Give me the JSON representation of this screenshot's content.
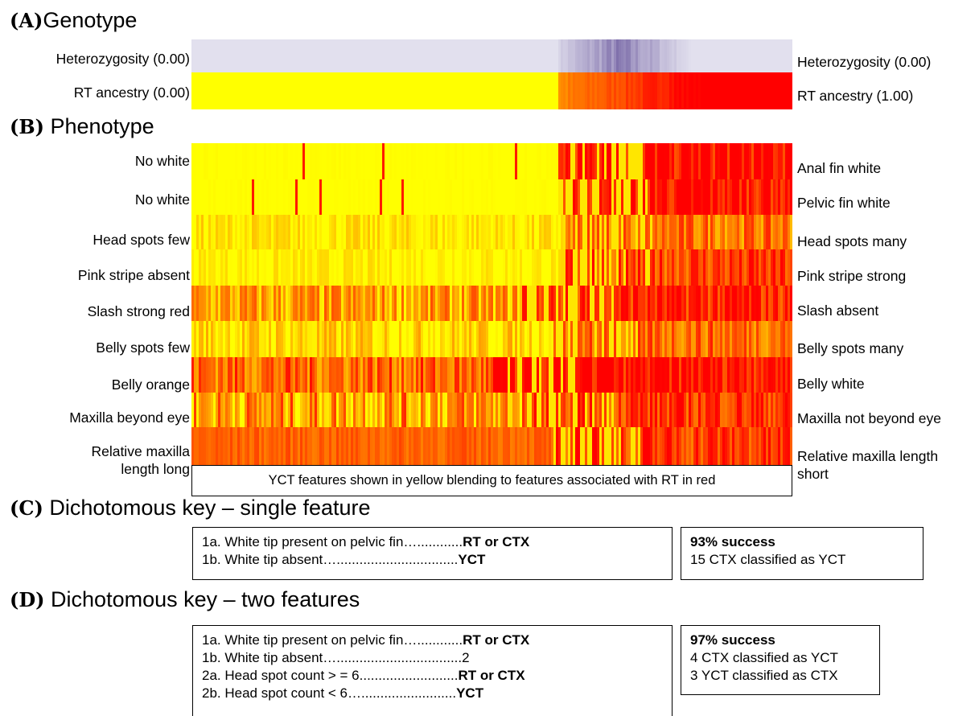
{
  "section_a": {
    "letter": "(A)",
    "title": "Genotype"
  },
  "section_b": {
    "letter": "(B)",
    "title": "Phenotype"
  },
  "section_c": {
    "letter": "(C)",
    "title": "Dichotomous key – single feature"
  },
  "section_d": {
    "letter": "(D)",
    "title": "Dichotomous key – two features"
  },
  "genotype_rows": [
    {
      "left": "Heterozygosity (0.00)",
      "right": "Heterozygosity (0.00)",
      "palette": "purple"
    },
    {
      "left": "RT ancestry (0.00)",
      "right": "RT ancestry (1.00)",
      "palette": "ancestry"
    }
  ],
  "phenotype_rows": [
    {
      "left": "No white",
      "right": "Anal fin white"
    },
    {
      "left": "No white",
      "right": "Pelvic fin white"
    },
    {
      "left": "Head spots few",
      "right": "Head spots many"
    },
    {
      "left": "Pink stripe absent",
      "right": "Pink stripe strong"
    },
    {
      "left": "Slash strong red",
      "right": "Slash absent"
    },
    {
      "left": "Belly spots few",
      "right": "Belly spots many"
    },
    {
      "left": "Belly orange",
      "right": "Belly white"
    },
    {
      "left": "Maxilla beyond eye",
      "right": "Maxilla not beyond eye"
    },
    {
      "left": "Relative maxilla length long",
      "right": "Relative maxilla length short"
    }
  ],
  "legend_note": "YCT features shown in yellow blending to features associated with RT in red",
  "key_c": {
    "lines": [
      {
        "text": "1a. White tip present on pelvic fin…............",
        "bold": "RT or CTX"
      },
      {
        "text": "1b. White tip absent…................................",
        "bold": "YCT"
      }
    ],
    "result_title": "93% success",
    "result_lines": [
      "15 CTX classified as YCT"
    ]
  },
  "key_d": {
    "lines": [
      {
        "text": "1a. White tip present on pelvic fin…............",
        "bold": "RT or CTX"
      },
      {
        "text": "1b. White tip absent….................................2",
        "bold": ""
      },
      {
        "text": "2a. Head spot count > = 6..........................",
        "bold": "RT or CTX"
      },
      {
        "text": "2b. Head spot count < 6….........................",
        "bold": "YCT"
      }
    ],
    "result_title": "97% success",
    "result_lines": [
      "4 CTX classified as YCT",
      "3 YCT classified as CTX"
    ]
  },
  "colors": {
    "yellow": "#ffff00",
    "orange": "#ff8000",
    "red": "#ff0000",
    "purple_light": "#e2e0ee",
    "purple_dark": "#7a6aa8"
  }
}
